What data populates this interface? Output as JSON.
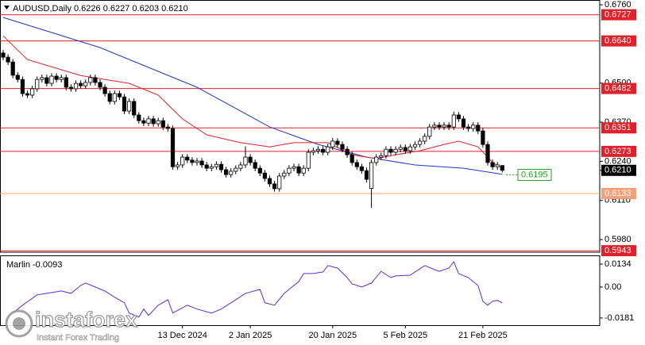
{
  "chart_data": [
    {
      "type": "candlestick",
      "title": "AUDUSD,Daily 0.6226 0.6227 0.6203 0.6210",
      "categories": [
        null,
        null,
        null,
        null,
        null,
        null,
        null,
        null,
        null,
        null,
        null,
        null,
        null,
        null,
        null,
        null,
        null,
        null,
        null,
        null,
        null,
        null,
        null,
        null,
        null,
        null,
        null,
        null,
        null,
        null,
        null,
        null,
        null,
        null,
        null,
        null,
        null,
        "13 Dec 2024",
        null,
        null,
        null,
        null,
        null,
        null,
        null,
        null,
        null,
        null,
        null,
        null,
        null,
        "2 Jan 2025",
        null,
        null,
        null,
        null,
        null,
        null,
        null,
        null,
        null,
        null,
        null,
        null,
        null,
        null,
        null,
        null,
        "20 Jan 2025",
        null,
        null,
        null,
        null,
        null,
        null,
        null,
        null,
        null,
        null,
        null,
        null,
        null,
        null,
        "5 Feb 2025",
        null,
        null,
        null,
        null,
        null,
        null,
        null,
        null,
        null,
        null,
        null,
        null,
        null,
        null,
        null,
        "21 Feb 2025",
        null,
        null,
        null,
        null
      ],
      "open": [
        0.66,
        0.6586,
        0.657,
        0.6526,
        0.6512,
        0.6465,
        0.646,
        0.6481,
        0.6512,
        0.6518,
        0.6499,
        0.6523,
        0.6512,
        0.6518,
        0.6486,
        0.6481,
        0.6499,
        0.6491,
        0.6502,
        0.6518,
        0.6502,
        0.6486,
        0.6465,
        0.6439,
        0.6465,
        0.6454,
        0.6407,
        0.6439,
        0.6394,
        0.6375,
        0.6367,
        0.6381,
        0.6365,
        0.6375,
        0.6354,
        0.6349,
        0.6222,
        0.6228,
        0.6254,
        0.6244,
        0.6236,
        0.6241,
        0.6228,
        0.6217,
        0.6222,
        0.623,
        0.6212,
        0.6196,
        0.6207,
        0.6217,
        0.6228,
        0.6254,
        0.6236,
        0.6217,
        0.6201,
        0.6183,
        0.6165,
        0.6149,
        0.6191,
        0.6201,
        0.6217,
        0.6222,
        0.6201,
        0.6217,
        0.627,
        0.6275,
        0.628,
        0.627,
        0.6288,
        0.6307,
        0.6296,
        0.628,
        0.6262,
        0.6236,
        0.6222,
        0.6209,
        0.615,
        0.6236,
        0.6254,
        0.6259,
        0.628,
        0.627,
        0.628,
        0.6286,
        0.6275,
        0.6288,
        0.6296,
        0.6307,
        0.6323,
        0.6354,
        0.636,
        0.6354,
        0.636,
        0.6354,
        0.6394,
        0.6381,
        0.6354,
        0.6349,
        0.636,
        0.6341,
        0.6296,
        0.6236,
        0.6222,
        0.6226
      ],
      "high": [
        0.661,
        0.6596,
        0.658,
        0.6536,
        0.6522,
        0.6475,
        0.6491,
        0.6522,
        0.6528,
        0.6528,
        0.6533,
        0.6533,
        0.6528,
        0.6528,
        0.6496,
        0.6509,
        0.6509,
        0.6512,
        0.6528,
        0.6528,
        0.6512,
        0.6496,
        0.6475,
        0.6475,
        0.6475,
        0.6464,
        0.6449,
        0.6449,
        0.6404,
        0.6385,
        0.6391,
        0.6391,
        0.6385,
        0.6385,
        0.6364,
        0.6359,
        0.6238,
        0.6264,
        0.6264,
        0.6254,
        0.6251,
        0.6251,
        0.6238,
        0.6232,
        0.624,
        0.624,
        0.6222,
        0.6217,
        0.6227,
        0.6238,
        0.629,
        0.6264,
        0.6246,
        0.6227,
        0.6211,
        0.6193,
        0.6175,
        0.6201,
        0.6211,
        0.6227,
        0.6232,
        0.6232,
        0.6227,
        0.628,
        0.6285,
        0.629,
        0.629,
        0.6298,
        0.6318,
        0.6317,
        0.6306,
        0.629,
        0.6272,
        0.6246,
        0.6232,
        0.6219,
        0.6246,
        0.6264,
        0.6269,
        0.629,
        0.629,
        0.629,
        0.6296,
        0.6296,
        0.6298,
        0.6306,
        0.6317,
        0.6333,
        0.6364,
        0.637,
        0.637,
        0.637,
        0.637,
        0.6405,
        0.6404,
        0.6391,
        0.6364,
        0.637,
        0.637,
        0.6351,
        0.6306,
        0.6246,
        0.6238,
        0.6227
      ],
      "low": [
        0.6576,
        0.656,
        0.6516,
        0.6502,
        0.6455,
        0.645,
        0.645,
        0.6471,
        0.6502,
        0.6489,
        0.6489,
        0.6502,
        0.6502,
        0.6476,
        0.6471,
        0.6471,
        0.6481,
        0.6481,
        0.6492,
        0.6492,
        0.6476,
        0.6455,
        0.6429,
        0.6429,
        0.6444,
        0.6397,
        0.6397,
        0.6384,
        0.6365,
        0.6357,
        0.6357,
        0.6355,
        0.6355,
        0.6344,
        0.6339,
        0.6212,
        0.6212,
        0.6218,
        0.6234,
        0.6226,
        0.6226,
        0.6218,
        0.6207,
        0.6207,
        0.6212,
        0.6202,
        0.6186,
        0.6186,
        0.6197,
        0.6207,
        0.6218,
        0.6226,
        0.6207,
        0.6191,
        0.6173,
        0.6155,
        0.6139,
        0.6139,
        0.6181,
        0.6191,
        0.6207,
        0.6191,
        0.6191,
        0.6207,
        0.626,
        0.6265,
        0.626,
        0.626,
        0.6278,
        0.6286,
        0.627,
        0.6252,
        0.6226,
        0.6212,
        0.6199,
        0.617,
        0.6085,
        0.6226,
        0.6244,
        0.6249,
        0.626,
        0.626,
        0.627,
        0.6265,
        0.6265,
        0.6278,
        0.6286,
        0.6297,
        0.6313,
        0.6344,
        0.6344,
        0.6344,
        0.6344,
        0.6344,
        0.6371,
        0.6344,
        0.6339,
        0.6339,
        0.6331,
        0.6286,
        0.6226,
        0.6212,
        0.6212,
        0.6203
      ],
      "close": [
        0.6586,
        0.657,
        0.6526,
        0.6512,
        0.6465,
        0.646,
        0.6481,
        0.6512,
        0.6518,
        0.6499,
        0.6523,
        0.6512,
        0.6518,
        0.6486,
        0.6481,
        0.6499,
        0.6491,
        0.6502,
        0.6518,
        0.6502,
        0.6486,
        0.6465,
        0.6439,
        0.6465,
        0.6454,
        0.6407,
        0.6439,
        0.6394,
        0.6375,
        0.6367,
        0.6381,
        0.6365,
        0.6375,
        0.6354,
        0.6349,
        0.6222,
        0.6228,
        0.6254,
        0.6244,
        0.6236,
        0.6241,
        0.6228,
        0.6217,
        0.6222,
        0.623,
        0.6212,
        0.6196,
        0.6207,
        0.6217,
        0.6228,
        0.6254,
        0.6236,
        0.6217,
        0.6201,
        0.6183,
        0.6165,
        0.6149,
        0.6191,
        0.6201,
        0.6217,
        0.6222,
        0.6201,
        0.6217,
        0.627,
        0.6275,
        0.628,
        0.627,
        0.6288,
        0.6307,
        0.6296,
        0.628,
        0.6262,
        0.6236,
        0.6222,
        0.6209,
        0.618,
        0.6236,
        0.6254,
        0.6259,
        0.628,
        0.627,
        0.628,
        0.6286,
        0.6275,
        0.6288,
        0.6296,
        0.6307,
        0.6323,
        0.6354,
        0.636,
        0.6354,
        0.636,
        0.6354,
        0.6394,
        0.6381,
        0.6354,
        0.6349,
        0.636,
        0.6341,
        0.6296,
        0.6236,
        0.6222,
        0.6228,
        0.621
      ],
      "overlays": [
        {
          "color": "#1f35c8",
          "x": [
            0,
            20,
            40,
            55,
            65,
            75,
            85,
            95,
            103
          ],
          "values": [
            0.6718,
            0.6618,
            0.6486,
            0.6354,
            0.6296,
            0.6254,
            0.6228,
            0.6217,
            0.6197
          ]
        },
        {
          "color": "#e0202a",
          "x": [
            0,
            5,
            16,
            26,
            32,
            37,
            42,
            49,
            55,
            60,
            67,
            72,
            77,
            81,
            86,
            91,
            94,
            98,
            101,
            103
          ],
          "values": [
            0.6657,
            0.6578,
            0.6525,
            0.6499,
            0.646,
            0.6381,
            0.6328,
            0.6302,
            0.6288,
            0.6302,
            0.6302,
            0.6262,
            0.6249,
            0.6262,
            0.6275,
            0.6296,
            0.6307,
            0.6288,
            0.6236,
            0.6217
          ]
        }
      ],
      "ma_label": {
        "value": 0.6195,
        "color": "#2a9d2a"
      },
      "levels": [
        {
          "value": 0.6727,
          "color": "#e0202a"
        },
        {
          "value": 0.664,
          "label": "0.6640",
          "color": "#e0202a"
        },
        {
          "value": 0.6482,
          "color": "#e0202a"
        },
        {
          "value": 0.6351,
          "color": "#e0202a"
        },
        {
          "value": 0.6273,
          "color": "#e0202a"
        },
        {
          "value": 0.6133,
          "color": "#f4a07a"
        },
        {
          "value": 0.5943,
          "color": "#e0202a"
        }
      ],
      "current": {
        "value": 0.621,
        "label": "0.6210"
      },
      "ylim": [
        0.5938,
        0.6776
      ],
      "yticks": [
        {
          "value": 0.676,
          "label": "0.6760"
        },
        {
          "value": 0.65,
          "label": "0.6500"
        },
        {
          "value": 0.637,
          "label": "0.6370"
        },
        {
          "value": 0.624,
          "label": "0.6240"
        },
        {
          "value": 0.611,
          "label": "0.6110"
        },
        {
          "value": 0.598,
          "label": "0.5980"
        }
      ]
    },
    {
      "type": "line",
      "title": "Marlin -0.0093",
      "color": "#5b2bd6",
      "x": [
        2,
        4,
        7,
        9,
        12,
        14,
        16,
        17,
        19,
        21,
        23,
        25,
        26,
        28,
        29,
        30,
        32,
        34,
        35,
        38,
        40,
        43,
        45,
        48,
        50,
        53,
        54,
        56,
        58,
        59,
        61,
        62,
        64,
        66,
        67,
        69,
        71,
        72,
        74,
        76,
        78,
        80,
        81,
        84,
        85,
        87,
        89,
        90,
        92,
        93,
        94,
        96,
        98,
        99,
        100,
        101,
        102,
        103
      ],
      "values": [
        -0.0152,
        -0.0106,
        -0.0046,
        -0.0037,
        -0.0023,
        -0.0037,
        0.0009,
        0.0023,
        0,
        -0.0023,
        -0.006,
        -0.0092,
        -0.0152,
        -0.0176,
        -0.0129,
        -0.0166,
        -0.0106,
        -0.0074,
        -0.0152,
        -0.0106,
        -0.0129,
        -0.0152,
        -0.0129,
        -0.0074,
        -0.0037,
        -0.0014,
        -0.0092,
        -0.0106,
        -0.0037,
        -0.0014,
        0.0032,
        0.0079,
        0.0079,
        0.0088,
        0.0125,
        0.0111,
        0.0055,
        0.0018,
        0,
        0.0023,
        0.0092,
        0.0055,
        0.0065,
        0.0069,
        0.0088,
        0.0125,
        0.0102,
        0.0092,
        0.0111,
        0.0148,
        0.0079,
        0.0055,
        0.0009,
        -0.0083,
        -0.0106,
        -0.0083,
        -0.0078,
        -0.0093
      ],
      "ylim": [
        -0.0223,
        0.0185
      ],
      "yticks": [
        0.0134,
        {
          "value": 0,
          "label": "0.00"
        },
        -0.0181
      ]
    }
  ],
  "watermark": {
    "brand": "instaforex",
    "tagline": "Instant Forex Trading"
  }
}
